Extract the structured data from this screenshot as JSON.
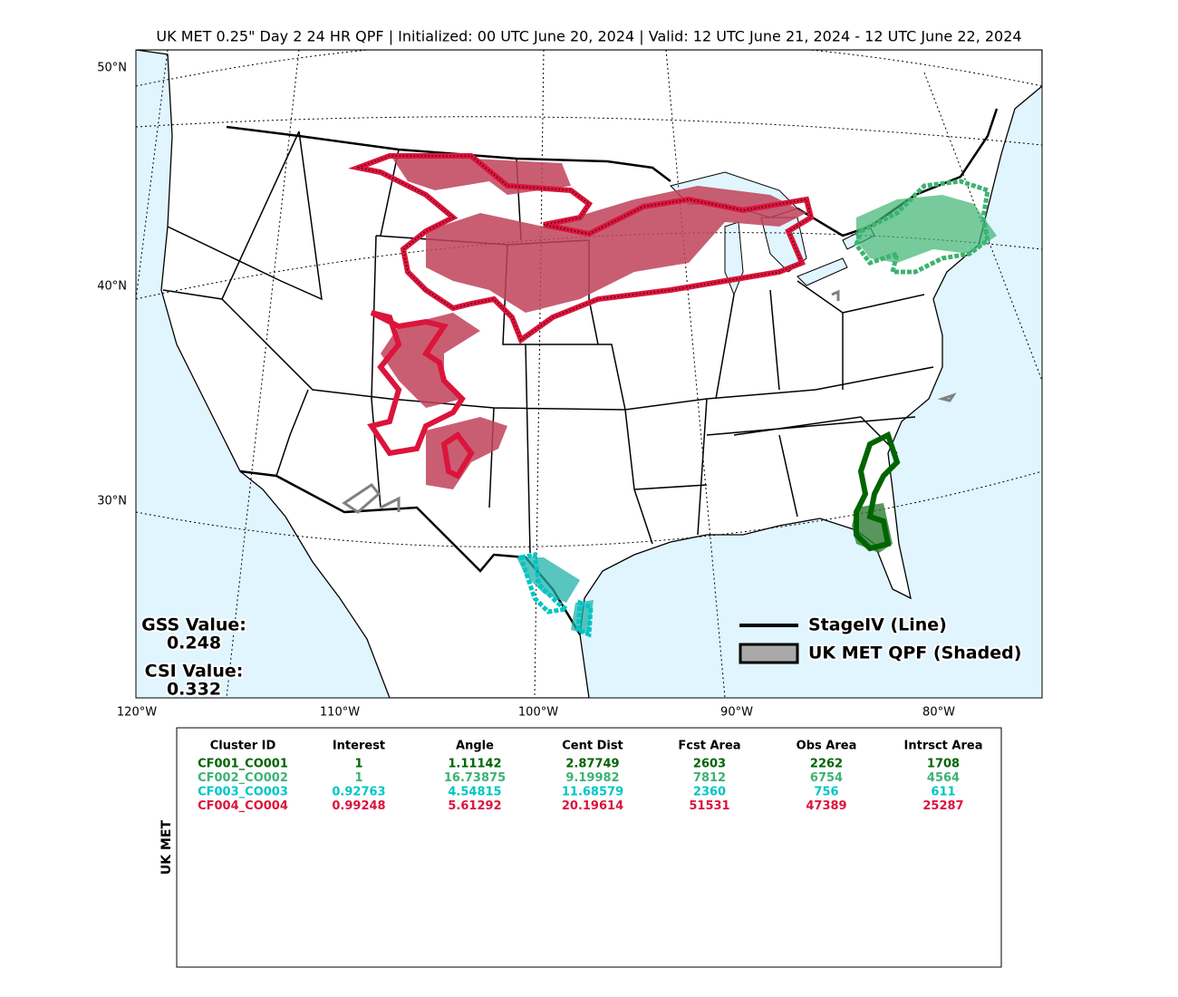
{
  "title": "UK MET 0.25\" Day 2 24 HR QPF | Initialized: 00 UTC June 20, 2024 | Valid: 12 UTC June 21, 2024 - 12 UTC June 22, 2024",
  "map": {
    "lat_labels": [
      "50°N",
      "40°N",
      "30°N"
    ],
    "lon_labels": [
      "120°W",
      "110°W",
      "100°W",
      "90°W",
      "80°W"
    ]
  },
  "scores": {
    "gss_label": "GSS Value:",
    "gss_value": "0.248",
    "csi_label": "CSI Value:",
    "csi_value": "0.332"
  },
  "legend": {
    "line_label": "StageIV (Line)",
    "shaded_label": "UK MET QPF (Shaded)"
  },
  "table": {
    "side_label": "UK MET",
    "headers": [
      "Cluster ID",
      "Interest",
      "Angle",
      "Cent Dist",
      "Fcst Area",
      "Obs Area",
      "Intrsct Area"
    ],
    "rows": [
      [
        "CF001_CO001",
        "1",
        "1.11142",
        "2.87749",
        "2603",
        "2262",
        "1708"
      ],
      [
        "CF002_CO002",
        "1",
        "16.73875",
        "9.19982",
        "7812",
        "6754",
        "4564"
      ],
      [
        "CF003_CO003",
        "0.92763",
        "4.54815",
        "11.68579",
        "2360",
        "756",
        "611"
      ],
      [
        "CF004_CO004",
        "0.99248",
        "5.61292",
        "20.19614",
        "51531",
        "47389",
        "25287"
      ]
    ],
    "row_colors": [
      "#006400",
      "#3cb371",
      "#00c5c5",
      "#dc143c"
    ]
  }
}
